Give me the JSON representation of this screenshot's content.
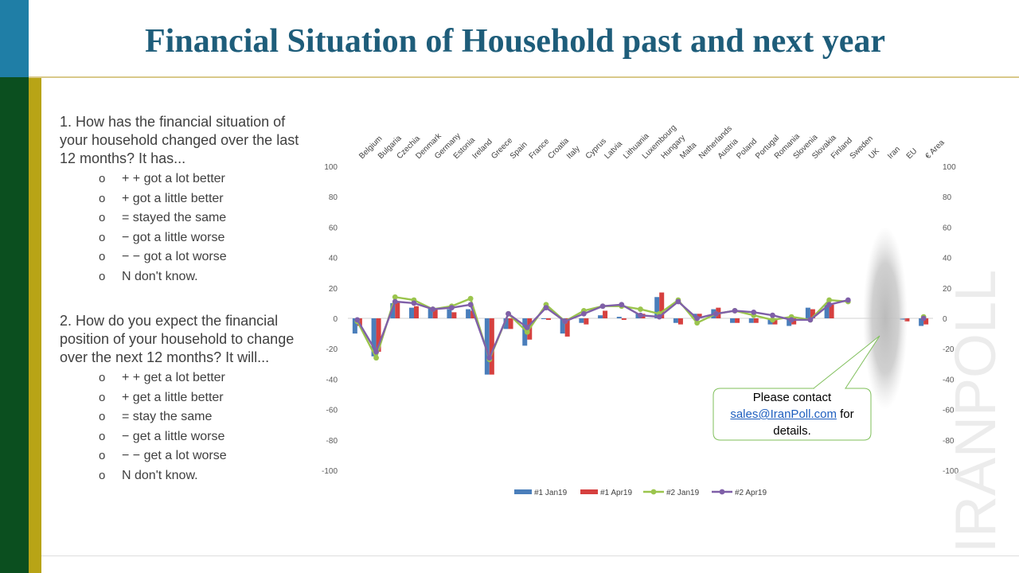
{
  "title": "Financial Situation of Household past and next year",
  "brand": "IRANPOLL",
  "q1": {
    "text": "1. How has the financial situation of your household changed over the last 12 months?  It has...",
    "options": [
      "+ + got a lot better",
      "+ got a little better",
      "= stayed the same",
      "− got a little worse",
      "− − got a lot worse",
      "N don't know."
    ]
  },
  "q2": {
    "text": "2. How do you expect the financial position of your household to change over the next 12 months?  It will...",
    "options": [
      "+ + get a lot better",
      "+ get a little better",
      "= stay the same",
      "− get a little worse",
      "− − get a lot worse",
      "N don't know."
    ]
  },
  "callout": {
    "line1": "Please contact",
    "email": "sales@IranPoll.com",
    "after_email": " for",
    "line3": "details."
  },
  "colors": {
    "title": "#1e5d7a",
    "s1": "#4a7ebb",
    "s2": "#d6403f",
    "s3": "#9bc54d",
    "s4": "#7f5fa8"
  },
  "chart_data": {
    "type": "bar+line",
    "categories": [
      "Belgium",
      "Bulgaria",
      "Czechia",
      "Denmark",
      "Germany",
      "Estonia",
      "Ireland",
      "Greece",
      "Spain",
      "France",
      "Croatia",
      "Italy",
      "Cyprus",
      "Latvia",
      "Lithuania",
      "Luxembourg",
      "Hungary",
      "Malta",
      "Netherlands",
      "Austria",
      "Poland",
      "Portugal",
      "Romania",
      "Slovenia",
      "Slovakia",
      "Finland",
      "Sweden",
      "UK",
      "Iran",
      "EU",
      "€ Area"
    ],
    "ylim": [
      -100,
      100
    ],
    "yticks": [
      "100",
      "80",
      "60",
      "40",
      "20",
      "0",
      "-20",
      "-40",
      "-60",
      "-80",
      "-100"
    ],
    "legend_position": "bottom",
    "series": [
      {
        "name": "#1 Jan19",
        "kind": "bar",
        "values": [
          -10,
          -25,
          10,
          7,
          7,
          6,
          6,
          -37,
          -7,
          -18,
          0,
          -10,
          -3,
          2,
          1,
          3,
          14,
          -3,
          3,
          6,
          -3,
          -3,
          -4,
          -5,
          7,
          9,
          null,
          null,
          null,
          -1,
          -5
        ]
      },
      {
        "name": "#1 Apr19",
        "kind": "bar",
        "values": [
          -5,
          -22,
          11,
          8,
          6,
          4,
          5,
          -37,
          -7,
          -14,
          -1,
          -12,
          -4,
          5,
          -1,
          3,
          17,
          -4,
          3,
          7,
          -3,
          -3,
          -4,
          -4,
          6,
          9,
          null,
          null,
          null,
          -2,
          -4
        ]
      },
      {
        "name": "#2 Jan19",
        "kind": "line",
        "values": [
          -2,
          -26,
          14,
          12,
          6,
          8,
          13,
          -27,
          3,
          -9,
          9,
          -2,
          5,
          8,
          8,
          6,
          3,
          12,
          -3,
          3,
          5,
          2,
          -1,
          1,
          -1,
          12,
          11,
          null,
          null,
          null,
          1
        ]
      },
      {
        "name": "#2 Apr19",
        "kind": "line",
        "values": [
          -1,
          -22,
          11,
          10,
          6,
          7,
          9,
          -26,
          3,
          -6,
          7,
          -2,
          3,
          8,
          9,
          2,
          1,
          11,
          0,
          3,
          5,
          4,
          2,
          -1,
          -1,
          9,
          12,
          null,
          null,
          null,
          0
        ]
      }
    ]
  }
}
